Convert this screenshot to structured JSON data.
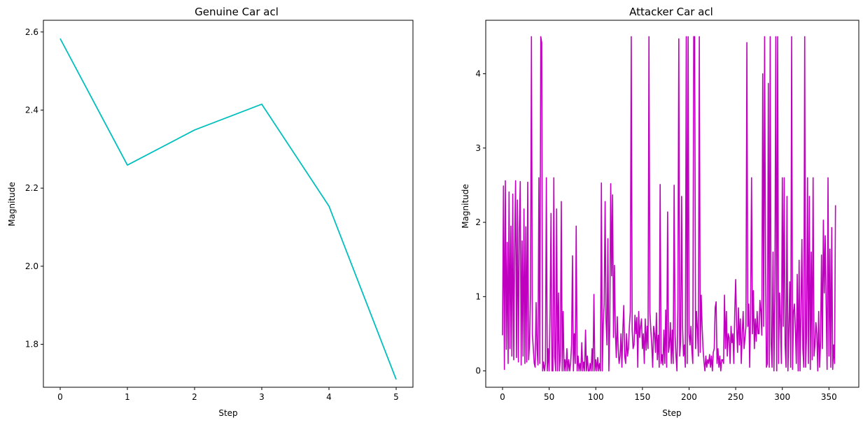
{
  "chart_data": [
    {
      "type": "line",
      "title": "Genuine Car acl",
      "xlabel": "Step",
      "ylabel": "Magnitude",
      "color": "#00bfbf",
      "xlim": [
        -0.25,
        5.25
      ],
      "ylim": [
        1.69,
        2.63
      ],
      "xticks": [
        0,
        1,
        2,
        3,
        4,
        5
      ],
      "xtick_labels": [
        "0",
        "1",
        "2",
        "3",
        "4",
        "5"
      ],
      "yticks": [
        1.8,
        2.0,
        2.2,
        2.4,
        2.6
      ],
      "ytick_labels": [
        "1.8",
        "2.0",
        "2.2",
        "2.4",
        "2.6"
      ],
      "grid": false,
      "x": [
        0,
        1,
        2,
        3,
        4,
        5
      ],
      "y": [
        2.583,
        2.259,
        2.349,
        2.415,
        2.154,
        1.71
      ]
    },
    {
      "type": "line",
      "title": "Attacker Car acl",
      "xlabel": "Step",
      "ylabel": "Magnitude",
      "color": "#bf00bf",
      "xlim": [
        -18,
        382
      ],
      "ylim": [
        -0.22,
        4.72
      ],
      "xticks": [
        0,
        50,
        100,
        150,
        200,
        250,
        300,
        350
      ],
      "xtick_labels": [
        "0",
        "50",
        "100",
        "150",
        "200",
        "250",
        "300",
        "350"
      ],
      "yticks": [
        0,
        1,
        2,
        3,
        4
      ],
      "ytick_labels": [
        "0",
        "1",
        "2",
        "3",
        "4"
      ],
      "grid": false,
      "x_start": 0,
      "y": [
        0.48,
        2.49,
        0.02,
        2.56,
        0.29,
        1.73,
        0.1,
        2.41,
        0.3,
        1.95,
        0.2,
        2.38,
        0.15,
        1.64,
        2.56,
        0.18,
        2.3,
        0.12,
        1.9,
        2.55,
        0.08,
        1.75,
        0.2,
        2.18,
        0.1,
        1.94,
        0.12,
        2.54,
        0.15,
        0.38,
        1.05,
        4.5,
        0.5,
        0.3,
        0.1,
        0.05,
        0.92,
        0.3,
        0.08,
        2.6,
        0.1,
        4.5,
        4.42,
        0.0,
        0.12,
        0.0,
        0.1,
        2.6,
        0.0,
        0.3,
        0.0,
        0.8,
        2.12,
        0.0,
        0.0,
        2.6,
        0.2,
        0.0,
        2.18,
        0.0,
        1.05,
        0.0,
        0.2,
        2.28,
        0.0,
        0.8,
        0.0,
        0.15,
        0.0,
        0.3,
        0.0,
        0.15,
        0.0,
        0.1,
        0.35,
        1.55,
        0.0,
        0.5,
        0.1,
        1.95,
        0.0,
        0.2,
        0.0,
        0.1,
        0.0,
        0.38,
        0.0,
        0.12,
        0.0,
        0.55,
        0.0,
        0.2,
        0.0,
        0.0,
        0.1,
        0.0,
        0.3,
        0.0,
        1.03,
        0.0,
        0.15,
        0.0,
        0.18,
        0.0,
        0.1,
        0.0,
        2.53,
        0.0,
        0.62,
        0.9,
        2.28,
        0.68,
        0.35,
        1.78,
        0.0,
        0.62,
        2.52,
        1.28,
        2.37,
        0.45,
        1.42,
        0.52,
        0.18,
        0.73,
        0.3,
        0.1,
        0.2,
        0.5,
        0.05,
        0.55,
        0.88,
        0.2,
        0.1,
        0.5,
        0.2,
        0.3,
        0.6,
        0.8,
        4.5,
        0.55,
        0.3,
        0.35,
        0.75,
        0.5,
        0.72,
        0.05,
        0.8,
        0.45,
        0.6,
        0.7,
        0.3,
        0.5,
        0.1,
        0.7,
        0.28,
        0.6,
        0.3,
        4.5,
        0.8,
        0.55,
        0.35,
        0.05,
        0.6,
        0.5,
        0.25,
        0.78,
        0.15,
        0.48,
        0.05,
        2.51,
        0.1,
        0.22,
        0.08,
        0.55,
        0.1,
        0.82,
        0.05,
        2.14,
        0.25,
        0.35,
        0.65,
        0.1,
        0.55,
        0.1,
        2.5,
        0.5,
        0.2,
        0.0,
        0.85,
        4.47,
        0.2,
        0.4,
        2.35,
        0.6,
        0.2,
        0.35,
        0.05,
        4.5,
        0.1,
        4.5,
        0.5,
        0.35,
        0.6,
        0.28,
        0.1,
        4.5,
        4.5,
        0.3,
        0.8,
        0.55,
        0.2,
        4.5,
        0.25,
        1.02,
        0.6,
        0.3,
        0.12,
        0.0,
        0.2,
        0.05,
        0.15,
        0.1,
        0.22,
        0.05,
        0.2,
        0.0,
        0.25,
        0.3,
        0.85,
        0.93,
        0.1,
        0.3,
        0.05,
        0.2,
        0.0,
        0.15,
        0.15,
        0.1,
        1.02,
        0.3,
        0.8,
        0.2,
        0.5,
        0.45,
        0.1,
        0.6,
        0.38,
        0.5,
        0.1,
        0.8,
        1.23,
        0.6,
        0.25,
        0.85,
        0.35,
        0.7,
        0.1,
        0.5,
        0.8,
        0.3,
        0.45,
        0.6,
        4.42,
        0.6,
        0.9,
        0.05,
        0.8,
        2.6,
        0.5,
        1.08,
        0.3,
        0.7,
        0.4,
        0.8,
        0.5,
        0.5,
        0.95,
        0.8,
        0.48,
        4.0,
        0.6,
        4.5,
        1.4,
        0.05,
        0.1,
        3.87,
        0.05,
        4.5,
        0.38,
        0.05,
        1.6,
        0.0,
        1.05,
        4.5,
        0.0,
        4.5,
        0.1,
        1.05,
        0.7,
        0.1,
        2.6,
        0.6,
        2.6,
        0.35,
        0.05,
        2.35,
        0.0,
        0.55,
        1.2,
        0.05,
        4.5,
        0.02,
        0.8,
        0.9,
        0.55,
        0.1,
        1.3,
        0.0,
        1.49,
        0.0,
        0.8,
        1.77,
        0.3,
        0.05,
        4.5,
        0.05,
        0.5,
        2.6,
        0.1,
        2.35,
        0.02,
        1.6,
        0.15,
        2.6,
        0.2,
        0.35,
        0.65,
        0.5,
        0.0,
        0.8,
        0.05,
        0.4,
        1.56,
        0.3,
        2.03,
        1.05,
        1.82,
        0.9,
        0.02,
        2.6,
        0.2,
        1.64,
        0.05,
        1.93,
        0.02,
        0.35,
        0.1,
        2.23
      ]
    }
  ]
}
